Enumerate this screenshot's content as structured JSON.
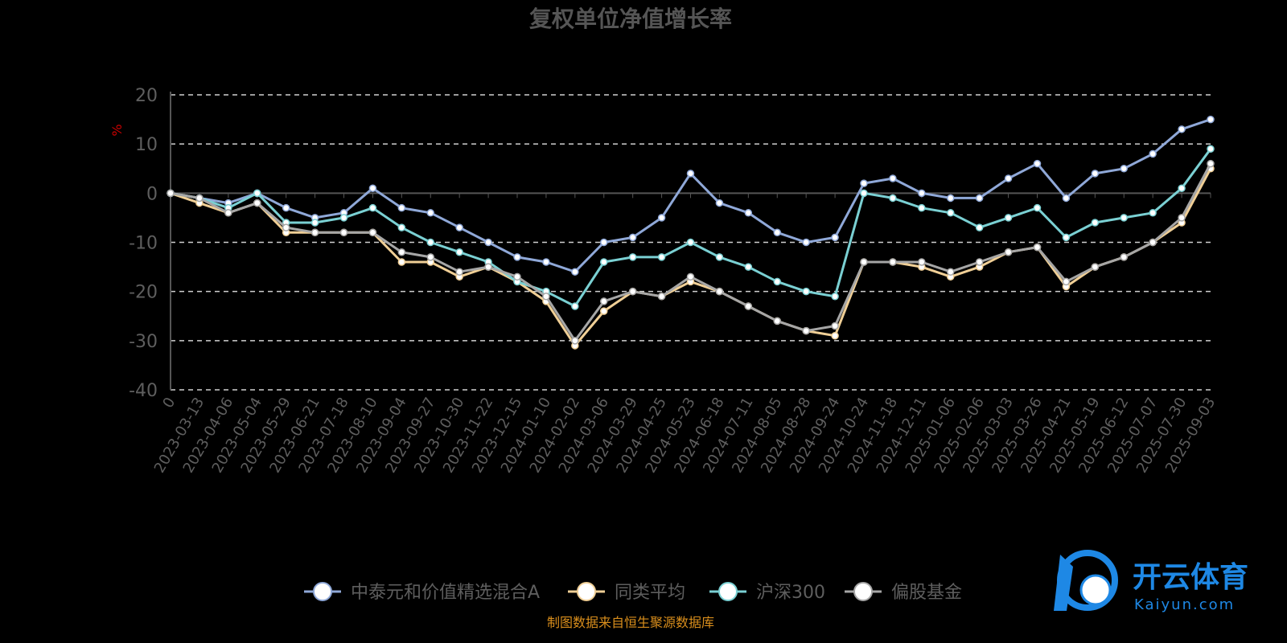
{
  "chart_data": {
    "type": "line",
    "title": "复权单位净值增长率",
    "ylabel": "%",
    "ylim": [
      -40,
      20
    ],
    "yticks": [
      "20",
      "10",
      "0",
      "-10",
      "-20",
      "-30",
      "-40"
    ],
    "x": [
      "0",
      "2023-03-13",
      "2023-04-06",
      "2023-05-04",
      "2023-05-29",
      "2023-06-21",
      "2023-07-18",
      "2023-08-10",
      "2023-09-04",
      "2023-09-27",
      "2023-10-30",
      "2023-11-22",
      "2023-12-15",
      "2024-01-10",
      "2024-02-02",
      "2024-03-06",
      "2024-03-29",
      "2024-04-25",
      "2024-05-23",
      "2024-06-18",
      "2024-07-11",
      "2024-08-05",
      "2024-08-28",
      "2024-09-24",
      "2024-10-24",
      "2024-11-18",
      "2024-12-11",
      "2025-01-06",
      "2025-02-06",
      "2025-03-03",
      "2025-03-26",
      "2025-04-21",
      "2025-05-19",
      "2025-06-12",
      "2025-07-07",
      "2025-07-30",
      "2025-09-03"
    ],
    "series": [
      {
        "name": "中泰元和价值精选混合A",
        "color": "#8fa8d8",
        "values": [
          0,
          -1,
          -2,
          0,
          -3,
          -5,
          -4,
          1,
          -3,
          -4,
          -7,
          -10,
          -13,
          -14,
          -16,
          -10,
          -9,
          -5,
          4,
          -2,
          -4,
          -8,
          -10,
          -9,
          2,
          3,
          0,
          -1,
          -1,
          3,
          6,
          -1,
          4,
          5,
          8,
          13,
          15
        ]
      },
      {
        "name": "同类平均",
        "color": "#f0cf96",
        "values": [
          0,
          -2,
          -4,
          -2,
          -8,
          -8,
          -8,
          -8,
          -14,
          -14,
          -17,
          -15,
          -18,
          -22,
          -31,
          -24,
          -20,
          -21,
          -18,
          -20,
          -23,
          -26,
          -28,
          -29,
          -14,
          -14,
          -15,
          -17,
          -15,
          -12,
          -11,
          -19,
          -15,
          -13,
          -10,
          -6,
          5
        ]
      },
      {
        "name": "沪深300",
        "color": "#7ad0d3",
        "values": [
          0,
          -1,
          -3,
          0,
          -6,
          -6,
          -5,
          -3,
          -7,
          -10,
          -12,
          -14,
          -18,
          -20,
          -23,
          -14,
          -13,
          -13,
          -10,
          -13,
          -15,
          -18,
          -20,
          -21,
          0,
          -1,
          -3,
          -4,
          -7,
          -5,
          -3,
          -9,
          -6,
          -5,
          -4,
          1,
          9
        ]
      },
      {
        "name": "偏股基金",
        "color": "#a6a6a6",
        "values": [
          0,
          -1,
          -4,
          -2,
          -7,
          -8,
          -8,
          -8,
          -12,
          -13,
          -16,
          -15,
          -17,
          -21,
          -30,
          -22,
          -20,
          -21,
          -17,
          -20,
          -23,
          -26,
          -28,
          -27,
          -14,
          -14,
          -14,
          -16,
          -14,
          -12,
          -11,
          -18,
          -15,
          -13,
          -10,
          -5,
          6
        ]
      }
    ]
  },
  "source_note": "制图数据来自恒生聚源数据库",
  "watermark": {
    "name": "开云体育",
    "domain": "Kaiyun.com"
  }
}
